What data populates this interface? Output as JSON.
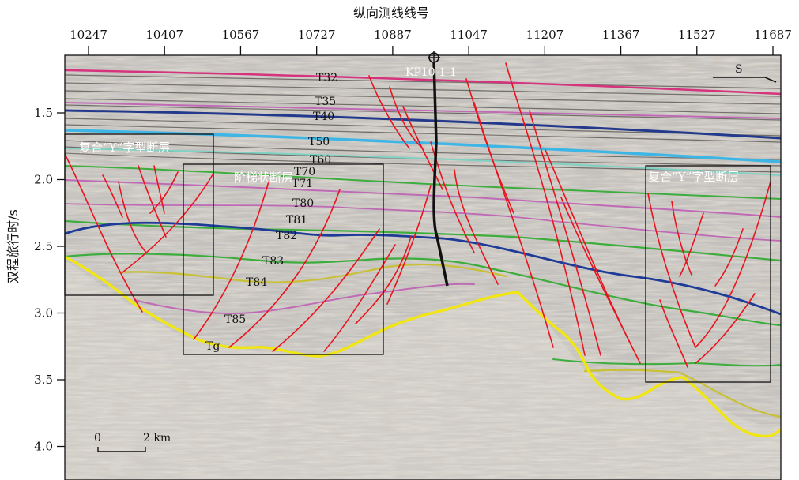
{
  "figure": {
    "top_axis_title": "纵向测线线号",
    "left_axis_title": "双程旅行时/s",
    "x_ticks": [
      "10247",
      "10407",
      "10567",
      "10727",
      "10887",
      "11047",
      "11207",
      "11367",
      "11527",
      "11687"
    ],
    "y_ticks": [
      "1.5",
      "2.0",
      "2.5",
      "3.0",
      "3.5",
      "4.0"
    ],
    "direction_label": "S",
    "well_label": "KP10-1-1",
    "horizon_labels": [
      "T32",
      "T35",
      "T40",
      "T50",
      "T60",
      "T70",
      "T71",
      "T80",
      "T81",
      "T82",
      "T83",
      "T84",
      "T85",
      "Tg"
    ],
    "box_labels": {
      "left": "复合“Y”字型断层",
      "middle": "阶梯状断层",
      "right": "复合“Y”字型断层"
    },
    "scale_bar": {
      "start": "0",
      "end": "2 km"
    }
  },
  "colors": {
    "fault": "#e8141e",
    "basement_tg": "#f0e614",
    "t32": "#d6337e",
    "t40": "#233a8c",
    "t50": "#3db6e6",
    "t60_t70": "#7fd1c3",
    "green_horizons": "#3dad3d",
    "blue_horizons": "#1f3b98",
    "magenta_horizons": "#c06ab6",
    "well": "#111111",
    "frame": "#111111"
  }
}
